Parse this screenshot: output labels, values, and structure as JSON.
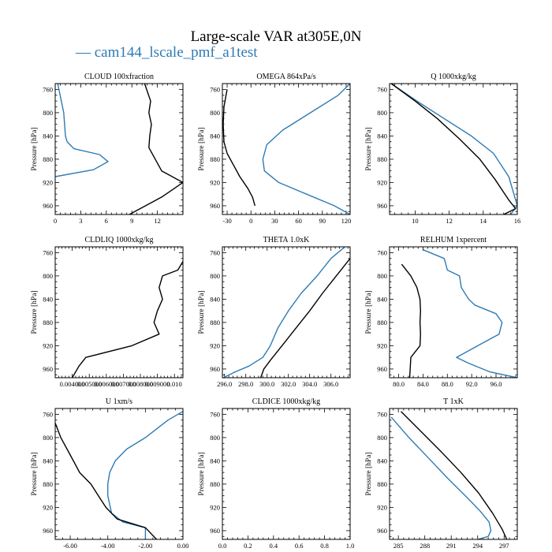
{
  "figure": {
    "title": "Large-scale VAR at305E,0N",
    "legend_label": "cam144_lscale_pmf_a1test",
    "legend_line_glyph": "—"
  },
  "colors": {
    "test_series": "#2e7bb4",
    "reference_series": "#000000"
  },
  "chart_data": [
    {
      "type": "line",
      "title": "CLOUD  100xfraction",
      "ylabel": "Pressure [hPa]",
      "xlim": [
        0,
        15
      ],
      "ylim": [
        975,
        750
      ],
      "yticks": [
        760,
        800,
        840,
        880,
        920,
        960
      ],
      "xticks": [
        0,
        3,
        6,
        9,
        12
      ],
      "xtick_labels": [
        "0",
        "3",
        "6",
        "9",
        "12"
      ],
      "series": [
        {
          "color": "#2e7bb4",
          "x": [
            0.3,
            1.0,
            1.2,
            1.4,
            2.2,
            5.2,
            6.2,
            4.5,
            0.0
          ],
          "y": [
            750,
            800,
            840,
            850,
            862,
            872,
            884,
            898,
            910
          ]
        },
        {
          "color": "#000000",
          "x": [
            10.5,
            11.2,
            11.0,
            11.3,
            11.1,
            11.0,
            12.5,
            15.0,
            12.5,
            8.7
          ],
          "y": [
            750,
            780,
            800,
            820,
            840,
            860,
            900,
            920,
            945,
            975
          ]
        }
      ]
    },
    {
      "type": "line",
      "title": "OMEGA  864xPa/s",
      "ylabel": "Pressure [hPa]",
      "xlim": [
        -36,
        125
      ],
      "ylim": [
        975,
        750
      ],
      "yticks": [
        760,
        800,
        840,
        880,
        920,
        960
      ],
      "xticks": [
        -30,
        0,
        30,
        60,
        90,
        120
      ],
      "xtick_labels": [
        "-30",
        "0",
        "30",
        "60",
        "90",
        "120"
      ],
      "series": [
        {
          "color": "#2e7bb4",
          "x": [
            125,
            110,
            75,
            40,
            20,
            15,
            17,
            35,
            70,
            105,
            125
          ],
          "y": [
            750,
            770,
            800,
            830,
            855,
            880,
            900,
            920,
            940,
            960,
            975
          ]
        },
        {
          "color": "#000000",
          "x": [
            -30,
            -34,
            -35,
            -34,
            -30,
            -22,
            -14,
            -4,
            2,
            5
          ],
          "y": [
            760,
            790,
            820,
            850,
            870,
            890,
            910,
            930,
            945,
            960
          ]
        }
      ]
    },
    {
      "type": "line",
      "title": "Q  1000xkg/kg",
      "ylabel": "Pressure [hPa]",
      "xlim": [
        8.5,
        16
      ],
      "ylim": [
        975,
        750
      ],
      "yticks": [
        760,
        800,
        840,
        880,
        920,
        960
      ],
      "xticks": [
        10,
        12,
        14,
        16
      ],
      "xtick_labels": [
        "10",
        "12",
        "14",
        "16"
      ],
      "series": [
        {
          "color": "#2e7bb4",
          "x": [
            8.6,
            10.1,
            11.7,
            13.3,
            14.6,
            15.5,
            16.0,
            15.6
          ],
          "y": [
            750,
            780,
            810,
            840,
            870,
            910,
            960,
            975
          ]
        },
        {
          "color": "#000000",
          "x": [
            8.6,
            10.0,
            11.3,
            12.6,
            13.8,
            14.7,
            15.5,
            15.9,
            15.2
          ],
          "y": [
            750,
            780,
            810,
            845,
            880,
            915,
            950,
            965,
            975
          ]
        }
      ]
    },
    {
      "type": "line",
      "title": "CLDLIQ  1000xkg/kg",
      "ylabel": "Pressure [hPa]",
      "xlim": [
        0.003,
        0.0105
      ],
      "ylim": [
        975,
        750
      ],
      "yticks": [
        760,
        800,
        840,
        880,
        920,
        960
      ],
      "xticks": [
        0.004,
        0.005,
        0.006,
        0.007,
        0.008,
        0.009,
        0.01
      ],
      "xtick_labels": [
        "0.004000",
        "0.005000",
        "0.006000",
        "0.007000",
        "0.008000",
        "0.009000",
        "0.010"
      ],
      "series": [
        {
          "color": "#000000",
          "x": [
            0.0106,
            0.0102,
            0.0093,
            0.0091,
            0.0093,
            0.009,
            0.0088,
            0.0091,
            0.0075,
            0.0048,
            0.0044,
            0.004
          ],
          "y": [
            770,
            790,
            800,
            820,
            840,
            860,
            880,
            900,
            920,
            940,
            955,
            975
          ]
        }
      ]
    },
    {
      "type": "line",
      "title": "THETA  1.0xK",
      "ylabel": "Pressure [hPa]",
      "xlim": [
        295.8,
        307.8
      ],
      "ylim": [
        975,
        750
      ],
      "yticks": [
        760,
        800,
        840,
        880,
        920,
        960
      ],
      "xticks": [
        296,
        298,
        300,
        302,
        304,
        306
      ],
      "xtick_labels": [
        "296.0",
        "298.0",
        "300.0",
        "302.0",
        "304.0",
        "306.0"
      ],
      "series": [
        {
          "color": "#2e7bb4",
          "x": [
            307.3,
            306.0,
            304.7,
            303.2,
            302.0,
            301.0,
            300.3,
            299.6,
            298.3,
            297.0,
            295.9
          ],
          "y": [
            750,
            770,
            800,
            830,
            860,
            890,
            920,
            940,
            955,
            965,
            975
          ]
        },
        {
          "color": "#000000",
          "x": [
            307.8,
            306.5,
            305.2,
            304.0,
            302.7,
            301.4,
            300.3,
            299.7,
            299.4
          ],
          "y": [
            770,
            800,
            830,
            860,
            890,
            920,
            945,
            960,
            975
          ]
        }
      ]
    },
    {
      "type": "line",
      "title": "RELHUM  1xpercent",
      "ylabel": "Pressure [hPa]",
      "xlim": [
        78.5,
        99.5
      ],
      "ylim": [
        975,
        750
      ],
      "yticks": [
        760,
        800,
        840,
        880,
        920,
        960
      ],
      "xticks": [
        80,
        84,
        88,
        92,
        96
      ],
      "xtick_labels": [
        "80.0",
        "84.0",
        "88.0",
        "92.0",
        "96.0"
      ],
      "series": [
        {
          "color": "#2e7bb4",
          "x": [
            84.0,
            87.5,
            88.0,
            90.0,
            90.3,
            91.5,
            92.5,
            96.0,
            97.0,
            96.5,
            93.0,
            89.5,
            91.5,
            95.0,
            99.5
          ],
          "y": [
            755,
            770,
            790,
            800,
            820,
            840,
            850,
            865,
            880,
            900,
            920,
            940,
            950,
            965,
            975
          ]
        },
        {
          "color": "#000000",
          "x": [
            80.5,
            82.0,
            83.0,
            83.5,
            83.6,
            83.5,
            83.6,
            83.5,
            82.0,
            81.8
          ],
          "y": [
            780,
            800,
            820,
            840,
            860,
            880,
            900,
            920,
            940,
            975
          ]
        }
      ]
    },
    {
      "type": "line",
      "title": "U  1xm/s",
      "ylabel": "Pressure [hPa]",
      "xlim": [
        -6.8,
        0.0
      ],
      "ylim": [
        975,
        750
      ],
      "yticks": [
        760,
        800,
        840,
        880,
        920,
        960
      ],
      "xticks": [
        -6,
        -4,
        -2,
        0
      ],
      "xtick_labels": [
        "-6.00",
        "-4.00",
        "-2.00",
        "0.00"
      ],
      "series": [
        {
          "color": "#2e7bb4",
          "x": [
            0.0,
            -0.8,
            -2.0,
            -3.0,
            -3.6,
            -3.9,
            -4.0,
            -4.0,
            -3.8,
            -3.2,
            -2.0,
            -2.0
          ],
          "y": [
            755,
            770,
            800,
            820,
            840,
            860,
            880,
            900,
            930,
            945,
            955,
            975
          ]
        },
        {
          "color": "#000000",
          "x": [
            -6.8,
            -6.5,
            -6.0,
            -5.5,
            -4.9,
            -4.5,
            -4.1,
            -3.5,
            -2.0,
            -1.4
          ],
          "y": [
            775,
            800,
            830,
            860,
            880,
            900,
            920,
            940,
            955,
            975
          ]
        }
      ]
    },
    {
      "type": "line",
      "title": "CLDICE  1000xkg/kg",
      "ylabel": "Pressure [hPa]",
      "xlim": [
        0,
        1
      ],
      "ylim": [
        975,
        750
      ],
      "yticks": [
        760,
        800,
        840,
        880,
        920,
        960
      ],
      "xticks": [
        0,
        0.2,
        0.4,
        0.6,
        0.8,
        1.0
      ],
      "xtick_labels": [
        "0.0",
        "0.2",
        "0.4",
        "0.6",
        "0.8",
        "1.0"
      ],
      "series": []
    },
    {
      "type": "line",
      "title": "T  1xK",
      "ylabel": "Pressure [hPa]",
      "xlim": [
        284,
        298.5
      ],
      "ylim": [
        975,
        750
      ],
      "yticks": [
        760,
        800,
        840,
        880,
        920,
        960
      ],
      "xticks": [
        285,
        288,
        291,
        294,
        297
      ],
      "xtick_labels": [
        "285",
        "288",
        "291",
        "294",
        "297"
      ],
      "series": [
        {
          "color": "#2e7bb4",
          "x": [
            284.2,
            286.2,
            288.4,
            290.6,
            292.6,
            294.2,
            295.3,
            295.5,
            295.2,
            294.0
          ],
          "y": [
            765,
            800,
            835,
            870,
            900,
            925,
            945,
            960,
            970,
            975
          ]
        },
        {
          "color": "#000000",
          "x": [
            285.3,
            287.6,
            289.9,
            292.1,
            294.1,
            295.7,
            296.8,
            297.3
          ],
          "y": [
            755,
            790,
            825,
            860,
            895,
            930,
            958,
            975
          ]
        }
      ]
    }
  ]
}
